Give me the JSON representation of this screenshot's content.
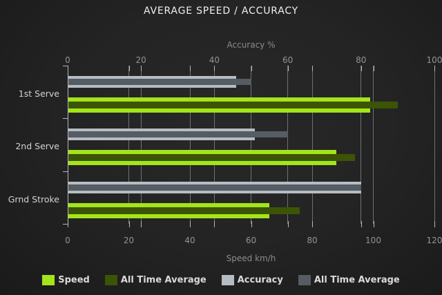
{
  "title": "AVERAGE SPEED / ACCURACY",
  "chart_data": {
    "type": "bar",
    "orientation": "horizontal",
    "title": "AVERAGE SPEED / ACCURACY",
    "categories": [
      "1st Serve",
      "2nd Serve",
      "Grnd Stroke"
    ],
    "top_axis": {
      "label": "Accuracy %",
      "ticks": [
        0,
        20,
        40,
        60,
        80,
        100
      ],
      "range": [
        0,
        100
      ]
    },
    "bottom_axis": {
      "label": "Speed km/h",
      "ticks": [
        0,
        20,
        40,
        60,
        80,
        100,
        120
      ],
      "range": [
        0,
        120
      ]
    },
    "series": [
      {
        "name": "Speed",
        "axis": "bottom",
        "color": "#a3e51a",
        "values": [
          99,
          88,
          66
        ]
      },
      {
        "name": "All Time Average",
        "axis": "bottom",
        "color": "#3c5405",
        "values": [
          108,
          94,
          76
        ]
      },
      {
        "name": "Accuracy",
        "axis": "top",
        "color": "#b6bdc2",
        "values": [
          46,
          51,
          80
        ]
      },
      {
        "name": "All Time Average",
        "axis": "top",
        "color": "#565c63",
        "values": [
          50,
          60,
          80
        ]
      }
    ],
    "legend": [
      "Speed",
      "All Time Average",
      "Accuracy",
      "All Time Average"
    ],
    "legend_position": "bottom",
    "grid": true,
    "colors": {
      "speed": "#a3e51a",
      "speed_all_time_average": "#3c5405",
      "accuracy": "#b6bdc2",
      "accuracy_all_time_average": "#565c63",
      "background": "#232323",
      "gridline": "#6d7175",
      "tick_text": "#939393",
      "title_text": "#f0f0f0"
    }
  }
}
